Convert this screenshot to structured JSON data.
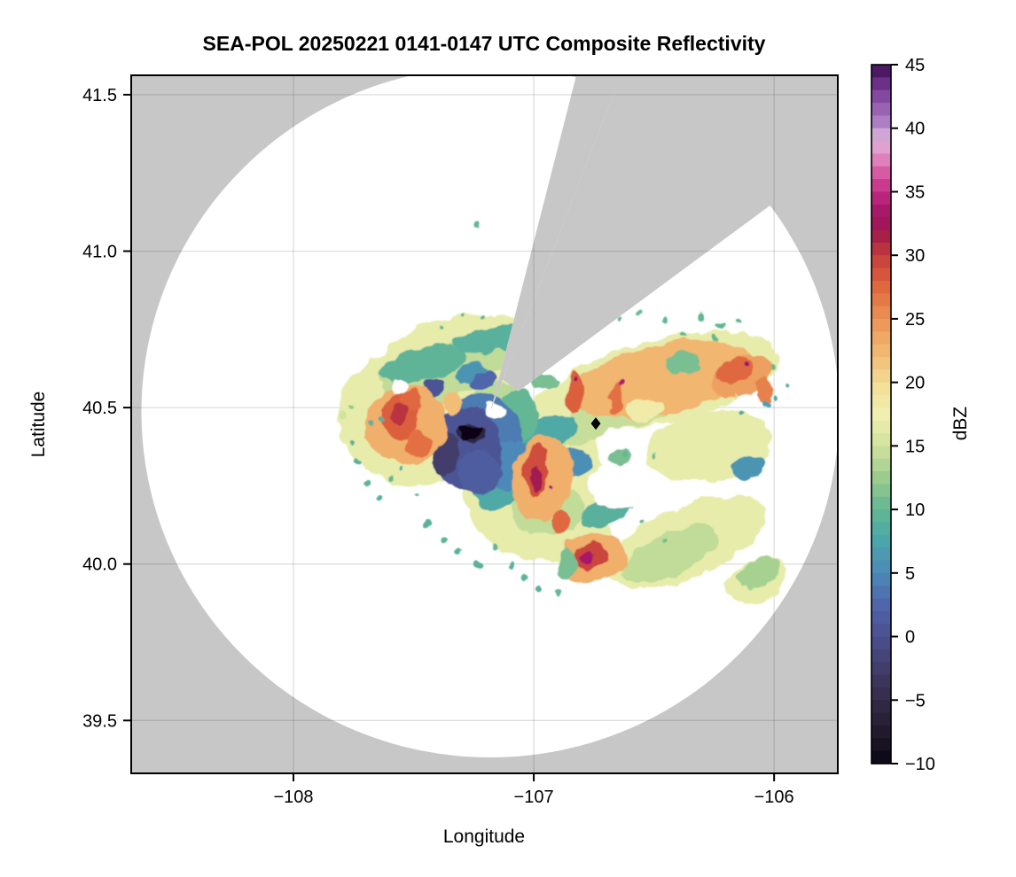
{
  "chart_data": {
    "type": "heatmap",
    "title": "SEA-POL 20250221 0141-0147 UTC Composite Reflectivity",
    "xlabel": "Longitude",
    "ylabel": "Latitude",
    "colorbar_label": "dBZ",
    "xlim": [
      -108.675,
      -105.735
    ],
    "ylim": [
      39.331,
      41.562
    ],
    "x_ticks": [
      -108,
      -107,
      -106
    ],
    "y_ticks": [
      41.5,
      41.0,
      40.5,
      40.0,
      39.5
    ],
    "grid": true,
    "plot_bg_color": "#c7c7c7",
    "coverage_color": "#ffffff",
    "colorbar": {
      "vmin": -10,
      "vmax": 45,
      "step": 1,
      "ticks": [
        45,
        40,
        35,
        30,
        25,
        20,
        15,
        10,
        5,
        0,
        -5,
        -10
      ],
      "stops": [
        {
          "v": -10,
          "c": "#0b0614"
        },
        {
          "v": -7.5,
          "c": "#201a2c"
        },
        {
          "v": -5,
          "c": "#332b49"
        },
        {
          "v": -2.5,
          "c": "#423e6b"
        },
        {
          "v": 0,
          "c": "#4b4f90"
        },
        {
          "v": 2.5,
          "c": "#4f66aa"
        },
        {
          "v": 5,
          "c": "#4d89b8"
        },
        {
          "v": 7.5,
          "c": "#4aa6aa"
        },
        {
          "v": 10,
          "c": "#63b794"
        },
        {
          "v": 12.5,
          "c": "#9bcc8e"
        },
        {
          "v": 15,
          "c": "#d1e39d"
        },
        {
          "v": 17.5,
          "c": "#f0efb0"
        },
        {
          "v": 20,
          "c": "#f4dc93"
        },
        {
          "v": 22.5,
          "c": "#f1b670"
        },
        {
          "v": 25,
          "c": "#eb9254"
        },
        {
          "v": 27.5,
          "c": "#e0683f"
        },
        {
          "v": 30,
          "c": "#c53c3b"
        },
        {
          "v": 31.5,
          "c": "#a6204a"
        },
        {
          "v": 33,
          "c": "#9e1360"
        },
        {
          "v": 35,
          "c": "#c42a85"
        },
        {
          "v": 36.5,
          "c": "#d75ba4"
        },
        {
          "v": 38,
          "c": "#e293c6"
        },
        {
          "v": 39.2,
          "c": "#dcb4db"
        },
        {
          "v": 40,
          "c": "#b78cc8"
        },
        {
          "v": 41.5,
          "c": "#9a63b2"
        },
        {
          "v": 43,
          "c": "#7b3b97"
        },
        {
          "v": 45,
          "c": "#3d0d53"
        }
      ]
    },
    "radar": {
      "center_lon": -107.181,
      "center_lat": 40.486,
      "range_deg_lat": 1.104,
      "blocked_sectors": [
        {
          "az_from_deg": 14.2,
          "az_to_deg": 21.0,
          "inner_frac": 0.0
        },
        {
          "az_from_deg": 21.0,
          "az_to_deg": 53.3,
          "inner_frac": 0.1
        }
      ]
    },
    "site_marker": {
      "lon": -106.742,
      "lat": 40.449,
      "shape": "diamond",
      "color": "#000000"
    },
    "echo_regions": [
      {
        "lon": -107.487,
        "lat": 40.472,
        "rx": 0.325,
        "ry": 0.221,
        "rot": 0,
        "dbz": 16.8
      },
      {
        "lon": -107.295,
        "lat": 40.648,
        "rx": 0.35,
        "ry": 0.147,
        "rot": -8,
        "dbz": 16.8
      },
      {
        "lon": -106.455,
        "lat": 40.591,
        "rx": 0.487,
        "ry": 0.133,
        "rot": -12,
        "dbz": 16.8
      },
      {
        "lon": -107.001,
        "lat": 40.268,
        "rx": 0.288,
        "ry": 0.249,
        "rot": 10,
        "dbz": 16.8
      },
      {
        "lon": -106.362,
        "lat": 40.07,
        "rx": 0.35,
        "ry": 0.113,
        "rot": -23,
        "dbz": 16.8
      },
      {
        "lon": -106.27,
        "lat": 40.378,
        "rx": 0.266,
        "ry": 0.113,
        "rot": -8,
        "dbz": 16.8
      },
      {
        "lon": -107.45,
        "lat": 40.571,
        "rx": 0.221,
        "ry": 0.127,
        "rot": 0,
        "dbz": 16.8
      },
      {
        "lon": -106.074,
        "lat": 39.948,
        "rx": 0.133,
        "ry": 0.062,
        "rot": -25,
        "dbz": 16.8
      },
      {
        "lon": -106.86,
        "lat": 40.104,
        "rx": 0.184,
        "ry": 0.113,
        "rot": 15,
        "dbz": 16.8
      },
      {
        "lon": -106.915,
        "lat": 40.5,
        "rx": 0.111,
        "ry": 0.057,
        "rot": -20,
        "dbz": 16.8
      },
      {
        "lon": -107.358,
        "lat": 40.619,
        "rx": 0.203,
        "ry": 0.079,
        "rot": -10,
        "dbz": 14.2
      },
      {
        "lon": -107.1,
        "lat": 40.676,
        "rx": 0.184,
        "ry": 0.057,
        "rot": -8,
        "dbz": 14.2
      },
      {
        "lon": -107.487,
        "lat": 40.58,
        "rx": 0.166,
        "ry": 0.071,
        "rot": 15,
        "dbz": 14.2
      },
      {
        "lon": -106.58,
        "lat": 40.523,
        "rx": 0.258,
        "ry": 0.074,
        "rot": -12,
        "dbz": 14.5
      },
      {
        "lon": -106.381,
        "lat": 40.585,
        "rx": 0.203,
        "ry": 0.062,
        "rot": -12,
        "dbz": 14.5
      },
      {
        "lon": -106.941,
        "lat": 40.175,
        "rx": 0.148,
        "ry": 0.085,
        "rot": 0,
        "dbz": 14.2
      },
      {
        "lon": -106.435,
        "lat": 40.033,
        "rx": 0.221,
        "ry": 0.068,
        "rot": -25,
        "dbz": 14.2
      },
      {
        "lon": -107.155,
        "lat": 40.514,
        "rx": 0.111,
        "ry": 0.071,
        "rot": 0,
        "dbz": 14.0
      },
      {
        "lon": -106.786,
        "lat": 40.444,
        "rx": 0.129,
        "ry": 0.057,
        "rot": -30,
        "dbz": 14.5
      },
      {
        "lon": -107.458,
        "lat": 40.636,
        "rx": 0.192,
        "ry": 0.051,
        "rot": -12,
        "dbz": 9.5
      },
      {
        "lon": -107.137,
        "lat": 40.718,
        "rx": 0.203,
        "ry": 0.04,
        "rot": -6,
        "dbz": 9
      },
      {
        "lon": -107.255,
        "lat": 40.611,
        "rx": 0.066,
        "ry": 0.031,
        "rot": -20,
        "dbz": 6
      },
      {
        "lon": -107.008,
        "lat": 40.396,
        "rx": 0.192,
        "ry": 0.062,
        "rot": -22,
        "dbz": 8
      },
      {
        "lon": -107.155,
        "lat": 40.259,
        "rx": 0.103,
        "ry": 0.091,
        "rot": 0,
        "dbz": 8
      },
      {
        "lon": -106.831,
        "lat": 40.324,
        "rx": 0.074,
        "ry": 0.043,
        "rot": 0,
        "dbz": 5.5
      },
      {
        "lon": -106.104,
        "lat": 40.31,
        "rx": 0.063,
        "ry": 0.034,
        "rot": -15,
        "dbz": 6
      },
      {
        "lon": -106.963,
        "lat": 40.58,
        "rx": 0.059,
        "ry": 0.028,
        "rot": 0,
        "dbz": 11
      },
      {
        "lon": -107.579,
        "lat": 40.364,
        "rx": 0.037,
        "ry": 0.023,
        "rot": 0,
        "dbz": 9.5
      },
      {
        "lon": -106.683,
        "lat": 40.183,
        "rx": 0.129,
        "ry": 0.045,
        "rot": -28,
        "dbz": 9
      },
      {
        "lon": -107.063,
        "lat": 40.472,
        "rx": 0.092,
        "ry": 0.085,
        "rot": 0,
        "dbz": 10
      },
      {
        "lon": -107.211,
        "lat": 40.41,
        "rx": 0.155,
        "ry": 0.136,
        "rot": 0,
        "dbz": 4
      },
      {
        "lon": -107.1,
        "lat": 40.316,
        "rx": 0.092,
        "ry": 0.079,
        "rot": 0,
        "dbz": 5
      },
      {
        "lon": -107.277,
        "lat": 40.37,
        "rx": 0.148,
        "ry": 0.13,
        "rot": 5,
        "dbz": 0.5
      },
      {
        "lon": -107.365,
        "lat": 40.35,
        "rx": 0.055,
        "ry": 0.071,
        "rot": 8,
        "dbz": -2.5
      },
      {
        "lon": -107.229,
        "lat": 40.293,
        "rx": 0.089,
        "ry": 0.068,
        "rot": 0,
        "dbz": 1.5
      },
      {
        "lon": -107.417,
        "lat": 40.563,
        "rx": 0.048,
        "ry": 0.026,
        "rot": -15,
        "dbz": 0.5
      },
      {
        "lon": -107.218,
        "lat": 40.591,
        "rx": 0.059,
        "ry": 0.026,
        "rot": -25,
        "dbz": 2.5
      },
      {
        "lon": -107.262,
        "lat": 40.418,
        "rx": 0.059,
        "ry": 0.034,
        "rot": 0,
        "dbz": -5.5
      },
      {
        "lon": -107.532,
        "lat": 40.444,
        "rx": 0.17,
        "ry": 0.125,
        "rot": 0,
        "dbz": 23
      },
      {
        "lon": -106.462,
        "lat": 40.591,
        "rx": 0.387,
        "ry": 0.113,
        "rot": -12,
        "dbz": 22.5
      },
      {
        "lon": -106.963,
        "lat": 40.274,
        "rx": 0.125,
        "ry": 0.136,
        "rot": 8,
        "dbz": 23
      },
      {
        "lon": -106.757,
        "lat": 40.019,
        "rx": 0.14,
        "ry": 0.074,
        "rot": -10,
        "dbz": 23
      },
      {
        "lon": -107.34,
        "lat": 40.514,
        "rx": 0.041,
        "ry": 0.037,
        "rot": 0,
        "dbz": 22
      },
      {
        "lon": -106.137,
        "lat": 40.599,
        "rx": 0.125,
        "ry": 0.062,
        "rot": -20,
        "dbz": 24
      },
      {
        "lon": -106.546,
        "lat": 40.497,
        "rx": 0.081,
        "ry": 0.031,
        "rot": 0,
        "dbz": 18
      },
      {
        "lon": -107.554,
        "lat": 40.472,
        "rx": 0.074,
        "ry": 0.074,
        "rot": 10,
        "dbz": 28
      },
      {
        "lon": -107.48,
        "lat": 40.387,
        "rx": 0.052,
        "ry": 0.045,
        "rot": 0,
        "dbz": 27
      },
      {
        "lon": -107.513,
        "lat": 40.523,
        "rx": 0.037,
        "ry": 0.034,
        "rot": 0,
        "dbz": 27.5
      },
      {
        "lon": -106.99,
        "lat": 40.299,
        "rx": 0.048,
        "ry": 0.079,
        "rot": 5,
        "dbz": 29
      },
      {
        "lon": -106.886,
        "lat": 40.135,
        "rx": 0.033,
        "ry": 0.037,
        "rot": 0,
        "dbz": 27.5
      },
      {
        "lon": -106.764,
        "lat": 40.022,
        "rx": 0.074,
        "ry": 0.04,
        "rot": -10,
        "dbz": 29.5
      },
      {
        "lon": -106.83,
        "lat": 40.546,
        "rx": 0.033,
        "ry": 0.068,
        "rot": 0,
        "dbz": 28
      },
      {
        "lon": -106.661,
        "lat": 40.529,
        "rx": 0.026,
        "ry": 0.057,
        "rot": 8,
        "dbz": 27
      },
      {
        "lon": -106.166,
        "lat": 40.613,
        "rx": 0.081,
        "ry": 0.04,
        "rot": -20,
        "dbz": 27.5
      },
      {
        "lon": -106.041,
        "lat": 40.557,
        "rx": 0.041,
        "ry": 0.04,
        "rot": 0,
        "dbz": 26
      },
      {
        "lon": -106.99,
        "lat": 40.274,
        "rx": 0.026,
        "ry": 0.04,
        "rot": 0,
        "dbz": 32
      },
      {
        "lon": -106.775,
        "lat": 40.022,
        "rx": 0.033,
        "ry": 0.02,
        "rot": 0,
        "dbz": 33.5
      },
      {
        "lon": -107.561,
        "lat": 40.478,
        "rx": 0.03,
        "ry": 0.028,
        "rot": 0,
        "dbz": 30.5
      },
      {
        "lon": -106.638,
        "lat": 40.585,
        "rx": 0.013,
        "ry": 0.01,
        "rot": 0,
        "dbz": 34
      },
      {
        "lon": -106.122,
        "lat": 40.633,
        "rx": 0.013,
        "ry": 0.009,
        "rot": 0,
        "dbz": 33
      },
      {
        "lon": -106.83,
        "lat": 40.586,
        "rx": 0.009,
        "ry": 0.007,
        "rot": 0,
        "dbz": 33
      },
      {
        "lon": -106.927,
        "lat": 40.251,
        "rx": 0.011,
        "ry": 0.009,
        "rot": 0,
        "dbz": 34
      },
      {
        "lon": -106.373,
        "lat": 40.642,
        "rx": 0.074,
        "ry": 0.037,
        "rot": -10,
        "dbz": 11
      },
      {
        "lon": -106.864,
        "lat": 40.002,
        "rx": 0.041,
        "ry": 0.045,
        "rot": 0,
        "dbz": 11
      },
      {
        "lon": -106.067,
        "lat": 39.968,
        "rx": 0.096,
        "ry": 0.043,
        "rot": -25,
        "dbz": 13
      },
      {
        "lon": -106.639,
        "lat": 40.345,
        "rx": 0.044,
        "ry": 0.023,
        "rot": -10,
        "dbz": 11
      }
    ],
    "echo_specks": [
      [
        -107.79,
        40.48,
        0.016,
        15
      ],
      [
        -107.753,
        40.387,
        0.01,
        9
      ],
      [
        -107.738,
        40.33,
        0.013,
        9
      ],
      [
        -107.697,
        40.254,
        0.013,
        9.5
      ],
      [
        -107.638,
        40.214,
        0.013,
        9
      ],
      [
        -107.587,
        40.277,
        0.01,
        10
      ],
      [
        -107.487,
        40.217,
        0.01,
        9
      ],
      [
        -107.443,
        40.124,
        0.013,
        9
      ],
      [
        -107.376,
        40.078,
        0.013,
        9.5
      ],
      [
        -107.314,
        40.042,
        0.013,
        9
      ],
      [
        -107.233,
        39.999,
        0.016,
        9
      ],
      [
        -107.162,
        40.056,
        0.013,
        10
      ],
      [
        -107.096,
        39.991,
        0.013,
        9
      ],
      [
        -107.037,
        39.957,
        0.013,
        9.5
      ],
      [
        -106.971,
        39.917,
        0.013,
        9
      ],
      [
        -106.904,
        39.911,
        0.01,
        10
      ],
      [
        -107.376,
        40.761,
        0.01,
        10
      ],
      [
        -107.299,
        40.786,
        0.01,
        10
      ],
      [
        -107.21,
        40.795,
        0.01,
        10.5
      ],
      [
        -106.971,
        40.795,
        0.013,
        10
      ],
      [
        -106.857,
        40.781,
        0.01,
        10
      ],
      [
        -106.639,
        40.786,
        0.01,
        10
      ],
      [
        -106.554,
        40.8,
        0.01,
        10.5
      ],
      [
        -106.462,
        40.781,
        0.013,
        10
      ],
      [
        -106.307,
        40.786,
        0.016,
        10
      ],
      [
        -106.226,
        40.758,
        0.013,
        10
      ],
      [
        -106.148,
        40.778,
        0.01,
        10
      ],
      [
        -107.229,
        41.081,
        0.013,
        10
      ],
      [
        -106.62,
        40.35,
        0.013,
        10
      ],
      [
        -106.491,
        40.342,
        0.01,
        10
      ],
      [
        -106.594,
        40.186,
        0.013,
        10
      ],
      [
        -106.539,
        40.135,
        0.01,
        10
      ],
      [
        -106.447,
        40.084,
        0.01,
        10.5
      ],
      [
        -106.034,
        40.514,
        0.013,
        7
      ],
      [
        -105.986,
        40.534,
        0.01,
        8
      ],
      [
        -106.137,
        40.477,
        0.01,
        8
      ],
      [
        -105.956,
        40.579,
        0.01,
        9
      ],
      [
        -107.627,
        40.472,
        0.013,
        9
      ],
      [
        -107.672,
        40.449,
        0.01,
        9
      ],
      [
        -107.543,
        40.308,
        0.01,
        9
      ],
      [
        -107.753,
        40.512,
        0.01,
        12
      ],
      [
        -106.012,
        40.627,
        0.01,
        10
      ],
      [
        -106.251,
        40.724,
        0.01,
        10
      ],
      [
        -106.373,
        40.727,
        0.01,
        10
      ]
    ],
    "clear_pockets": [
      {
        "lon": -107.561,
        "lat": 40.568,
        "rx": 0.037,
        "ry": 0.026
      },
      {
        "lon": -106.646,
        "lat": 40.248,
        "rx": 0.125,
        "ry": 0.076
      },
      {
        "lon": -107.162,
        "lat": 40.492,
        "rx": 0.044,
        "ry": 0.02
      }
    ],
    "clutter_blobs": [
      {
        "lon": -107.262,
        "lat": 40.418,
        "rx": 0.041,
        "ry": 0.023
      },
      {
        "lon": -107.284,
        "lat": 40.401,
        "rx": 0.022,
        "ry": 0.014
      },
      {
        "lon": -107.236,
        "lat": 40.429,
        "rx": 0.022,
        "ry": 0.014
      },
      {
        "lon": -107.291,
        "lat": 40.438,
        "rx": 0.015,
        "ry": 0.011
      }
    ],
    "grid_color": "rgba(0,0,0,0.13)"
  }
}
